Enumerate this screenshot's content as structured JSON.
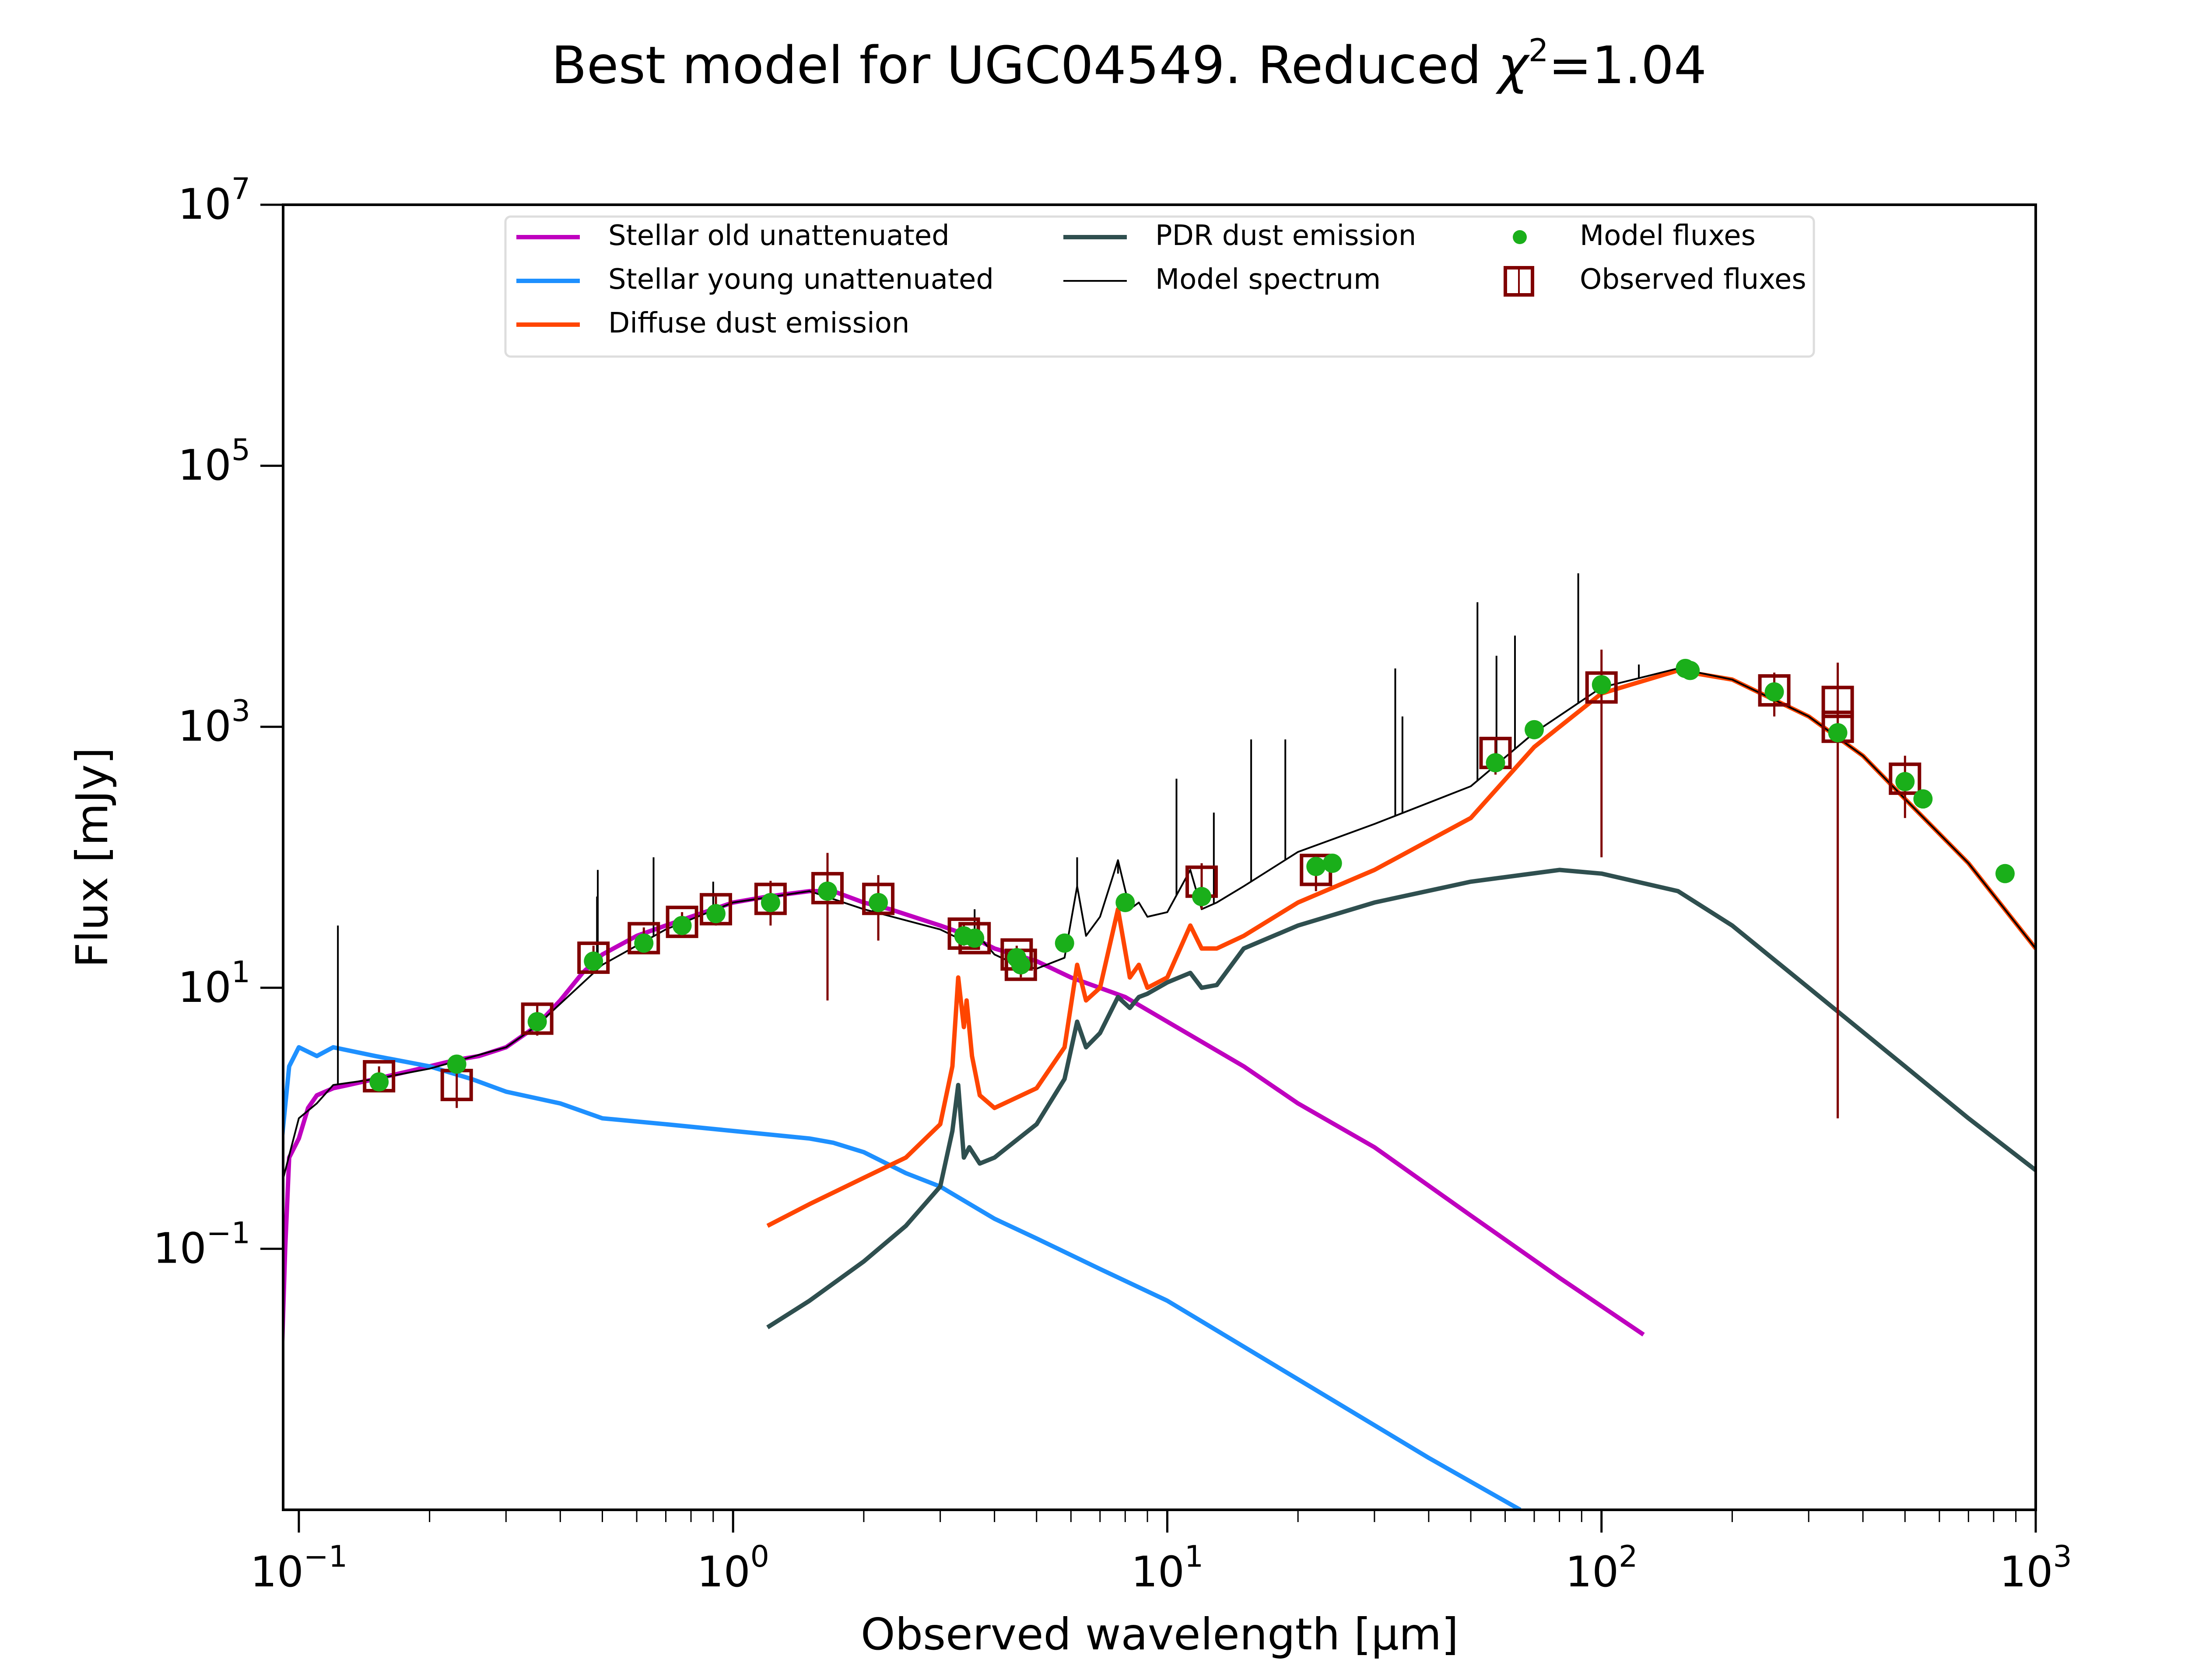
{
  "chart_data": {
    "type": "line",
    "title": "Best model for UGC04549. Reduced χ²=1.04",
    "title_parts": {
      "prefix": "Best model for UGC04549. Reduced ",
      "chi": "χ",
      "sup": "2",
      "suffix": "=1.04"
    },
    "xlabel": "Observed wavelength [μm]",
    "ylabel": "Flux [mJy]",
    "xscale": "log",
    "yscale": "log",
    "xlim": [
      0.092,
      1000
    ],
    "ylim": [
      0.001,
      10000000
    ],
    "xticks": [
      {
        "value": 0.1,
        "base": "10",
        "exp": "−1"
      },
      {
        "value": 1,
        "base": "10",
        "exp": "0"
      },
      {
        "value": 10,
        "base": "10",
        "exp": "1"
      },
      {
        "value": 100,
        "base": "10",
        "exp": "2"
      },
      {
        "value": 1000,
        "base": "10",
        "exp": "3"
      }
    ],
    "yticks": [
      {
        "value": 0.1,
        "base": "10",
        "exp": "−1"
      },
      {
        "value": 10,
        "base": "10",
        "exp": "1"
      },
      {
        "value": 1000,
        "base": "10",
        "exp": "3"
      },
      {
        "value": 100000,
        "base": "10",
        "exp": "5"
      },
      {
        "value": 10000000,
        "base": "10",
        "exp": "7"
      }
    ],
    "legend_position": "top-center",
    "legend": [
      {
        "label": "Stellar old unattenuated",
        "color": "#bf00bf",
        "kind": "line"
      },
      {
        "label": "Stellar young unattenuated",
        "color": "#1e90ff",
        "kind": "line"
      },
      {
        "label": "Diffuse dust emission",
        "color": "#ff4500",
        "kind": "line"
      },
      {
        "label": "PDR dust emission",
        "color": "#2f4f4f",
        "kind": "line"
      },
      {
        "label": "Model spectrum",
        "color": "#000000",
        "kind": "thinline"
      },
      {
        "label": "Model fluxes",
        "color": "#1aaf1a",
        "kind": "dot"
      },
      {
        "label": "Observed fluxes",
        "color": "#800000",
        "kind": "box"
      }
    ],
    "series": [
      {
        "name": "Stellar old unattenuated",
        "color": "#bf00bf",
        "x": [
          0.091,
          0.093,
          0.095,
          0.1,
          0.105,
          0.11,
          0.12,
          0.13,
          0.15,
          0.18,
          0.2,
          0.23,
          0.26,
          0.3,
          0.35,
          0.4,
          0.45,
          0.5,
          0.6,
          0.7,
          0.8,
          1.0,
          1.2,
          1.5,
          1.7,
          2.0,
          2.3,
          2.6,
          3.0,
          3.5,
          4.0,
          5.0,
          6.0,
          8.0,
          10,
          15,
          20,
          30,
          50,
          80,
          125
        ],
        "y": [
          0.01,
          0.1,
          0.5,
          0.7,
          1.2,
          1.5,
          1.7,
          1.8,
          2.0,
          2.3,
          2.5,
          2.8,
          3.0,
          3.5,
          5.0,
          8.0,
          13,
          18,
          25,
          30,
          35,
          45,
          50,
          55,
          55,
          45,
          40,
          35,
          30,
          25,
          20,
          16,
          12,
          8.5,
          5.5,
          2.5,
          1.3,
          0.6,
          0.18,
          0.06,
          0.022
        ]
      },
      {
        "name": "Stellar young unattenuated",
        "color": "#1e90ff",
        "x": [
          0.091,
          0.095,
          0.1,
          0.11,
          0.12,
          0.15,
          0.2,
          0.25,
          0.3,
          0.4,
          0.5,
          0.7,
          1.0,
          1.5,
          1.7,
          2.0,
          2.5,
          3.0,
          4.0,
          5.0,
          7.0,
          10,
          20,
          40,
          65
        ],
        "y": [
          0.6,
          2.5,
          3.5,
          3.0,
          3.5,
          3.0,
          2.5,
          2.0,
          1.6,
          1.3,
          1.0,
          0.9,
          0.8,
          0.7,
          0.65,
          0.55,
          0.38,
          0.3,
          0.17,
          0.12,
          0.07,
          0.04,
          0.01,
          0.0025,
          0.001
        ]
      },
      {
        "name": "Diffuse dust emission",
        "color": "#ff4500",
        "x": [
          1.2,
          1.5,
          2.0,
          2.5,
          3.0,
          3.2,
          3.3,
          3.4,
          3.45,
          3.55,
          3.7,
          4.0,
          5.0,
          5.8,
          6.2,
          6.5,
          7.0,
          7.7,
          8.2,
          8.6,
          9.0,
          10,
          11.3,
          12,
          13,
          15,
          20,
          30,
          50,
          70,
          100,
          150,
          200,
          300,
          400,
          500,
          700,
          1000
        ],
        "y": [
          0.15,
          0.22,
          0.35,
          0.5,
          0.9,
          2.5,
          12,
          5,
          8,
          3,
          1.5,
          1.2,
          1.7,
          3.5,
          15,
          8,
          10,
          40,
          12,
          15,
          10,
          12,
          30,
          20,
          20,
          25,
          45,
          80,
          200,
          700,
          1800,
          2700,
          2300,
          1200,
          600,
          280,
          90,
          20
        ]
      },
      {
        "name": "PDR dust emission",
        "color": "#2f4f4f",
        "x": [
          1.2,
          1.5,
          2.0,
          2.5,
          3.0,
          3.2,
          3.3,
          3.4,
          3.5,
          3.7,
          4.0,
          5.0,
          5.8,
          6.2,
          6.5,
          7.0,
          7.7,
          8.2,
          8.6,
          9.0,
          10,
          11.3,
          12,
          13,
          15,
          20,
          30,
          50,
          80,
          100,
          150,
          200,
          300,
          500,
          700,
          1000
        ],
        "y": [
          0.025,
          0.04,
          0.08,
          0.15,
          0.3,
          0.8,
          1.8,
          0.5,
          0.6,
          0.45,
          0.5,
          0.9,
          2.0,
          5.5,
          3.5,
          4.5,
          8.5,
          7,
          8.5,
          9,
          11,
          13,
          10,
          10.5,
          20,
          30,
          45,
          65,
          80,
          75,
          55,
          30,
          10,
          2.5,
          1.0,
          0.4
        ]
      },
      {
        "name": "Model spectrum",
        "color": "#000000",
        "x": [
          0.091,
          0.1,
          0.11,
          0.12,
          0.15,
          0.2,
          0.3,
          0.35,
          0.5,
          0.7,
          1.0,
          1.5,
          2.0,
          3.0,
          3.3,
          3.6,
          4.0,
          4.5,
          5.0,
          5.8,
          6.2,
          6.5,
          7.0,
          7.7,
          8.2,
          8.6,
          9.0,
          10,
          11.3,
          12,
          13,
          15,
          20,
          30,
          50,
          70,
          100,
          150,
          200,
          300,
          400,
          500,
          700,
          1000
        ],
        "y": [
          0.3,
          1.0,
          1.3,
          1.8,
          2.0,
          2.4,
          3.5,
          5,
          15,
          28,
          45,
          55,
          40,
          28,
          24,
          27,
          18,
          15,
          14,
          17,
          60,
          25,
          35,
          95,
          40,
          45,
          35,
          38,
          80,
          40,
          45,
          60,
          110,
          180,
          350,
          900,
          2000,
          2800,
          2300,
          1200,
          600,
          280,
          90,
          20
        ],
        "lines": [
          {
            "x": 0.123,
            "y": 30
          },
          {
            "x": 0.488,
            "y": 80
          },
          {
            "x": 0.486,
            "y": 50
          },
          {
            "x": 0.656,
            "y": 100
          },
          {
            "x": 0.9,
            "y": 65
          },
          {
            "x": 2.1,
            "y": 42
          },
          {
            "x": 3.6,
            "y": 40
          },
          {
            "x": 6.2,
            "y": 100
          },
          {
            "x": 7.7,
            "y": 75
          },
          {
            "x": 10.5,
            "y": 400
          },
          {
            "x": 12.8,
            "y": 220
          },
          {
            "x": 15.6,
            "y": 800
          },
          {
            "x": 18.7,
            "y": 800
          },
          {
            "x": 33.5,
            "y": 2800
          },
          {
            "x": 34.8,
            "y": 1200
          },
          {
            "x": 51.8,
            "y": 9000
          },
          {
            "x": 57.3,
            "y": 3500
          },
          {
            "x": 63.2,
            "y": 5000
          },
          {
            "x": 88.4,
            "y": 15000
          },
          {
            "x": 121.9,
            "y": 3000
          },
          {
            "x": 157.7,
            "y": 3000
          }
        ]
      },
      {
        "name": "Model fluxes",
        "color": "#1aaf1a",
        "kind": "scatter",
        "x": [
          0.153,
          0.231,
          0.354,
          0.477,
          0.623,
          0.763,
          0.913,
          1.22,
          1.65,
          2.16,
          3.4,
          3.6,
          4.5,
          4.6,
          5.8,
          8.0,
          12,
          22,
          24,
          57,
          70,
          100,
          156,
          160,
          250,
          350,
          500,
          550,
          850
        ],
        "y": [
          1.9,
          2.6,
          5.5,
          16,
          22,
          30,
          37,
          45,
          55,
          45,
          25,
          24,
          17,
          15,
          22,
          45,
          50,
          85,
          90,
          530,
          950,
          2100,
          2800,
          2700,
          1850,
          900,
          380,
          280,
          75
        ]
      },
      {
        "name": "Observed fluxes",
        "color": "#800000",
        "kind": "errorbox",
        "x": [
          0.153,
          0.231,
          0.354,
          0.477,
          0.623,
          0.763,
          0.913,
          1.22,
          1.65,
          2.16,
          3.4,
          3.6,
          4.5,
          4.6,
          12,
          22,
          57,
          100,
          250,
          350,
          350,
          500
        ],
        "y": [
          2.1,
          1.8,
          5.8,
          17,
          24,
          32,
          40,
          48,
          58,
          48,
          26,
          24,
          18,
          15,
          65,
          80,
          630,
          2000,
          1900,
          1000,
          1550,
          400
        ],
        "yerr": [
          0.4,
          0.6,
          1.5,
          4,
          5,
          6,
          10,
          18,
          50,
          25,
          5,
          4,
          3,
          3,
          25,
          25,
          200,
          1900,
          700,
          999,
          1549,
          200
        ]
      }
    ]
  }
}
